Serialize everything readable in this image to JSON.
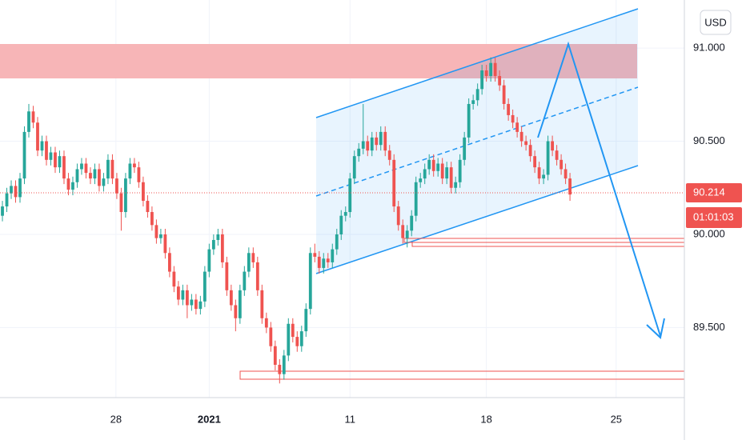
{
  "chart_data": {
    "type": "candlestick",
    "currency": "USD",
    "xlim": [
      -0.55,
      155
    ],
    "ylim": [
      89.124,
      91.258
    ],
    "xticks": [
      {
        "value": 25.8,
        "label": "28"
      },
      {
        "value": 47,
        "label": "2021"
      },
      {
        "value": 79,
        "label": "11"
      },
      {
        "value": 110,
        "label": "18"
      },
      {
        "value": 139.5,
        "label": "25"
      }
    ],
    "yticks": [
      {
        "value": 89.5,
        "label": "89.500"
      },
      {
        "value": 90.0,
        "label": "90.000"
      },
      {
        "value": 90.5,
        "label": "90.500"
      },
      {
        "value": 91.0,
        "label": "91.000"
      }
    ],
    "grid": true,
    "up_color": "#26a69a",
    "down_color": "#ef5350",
    "price_label": "90.214",
    "countdown": "01:01:03",
    "series": [
      {
        "ohlc": [
          [
            90.1,
            90.18,
            90.07,
            90.15
          ],
          [
            90.15,
            90.25,
            90.12,
            90.22
          ],
          [
            90.22,
            90.29,
            90.19,
            90.26
          ],
          [
            90.26,
            90.29,
            90.17,
            90.2
          ],
          [
            90.2,
            90.33,
            90.17,
            90.3
          ],
          [
            90.3,
            90.58,
            90.27,
            90.55
          ],
          [
            90.55,
            90.7,
            90.52,
            90.66
          ],
          [
            90.66,
            90.69,
            90.57,
            90.6
          ],
          [
            90.6,
            90.63,
            90.42,
            90.45
          ],
          [
            90.45,
            90.53,
            90.42,
            90.5
          ],
          [
            90.5,
            90.53,
            90.37,
            90.4
          ],
          [
            90.4,
            90.47,
            90.37,
            90.44
          ],
          [
            90.44,
            90.47,
            90.33,
            90.36
          ],
          [
            90.36,
            90.45,
            90.33,
            90.42
          ],
          [
            90.42,
            90.45,
            90.27,
            90.3
          ],
          [
            90.3,
            90.33,
            90.21,
            90.24
          ],
          [
            90.24,
            90.31,
            90.21,
            90.28
          ],
          [
            90.28,
            90.38,
            90.25,
            90.35
          ],
          [
            90.35,
            90.41,
            90.32,
            90.38
          ],
          [
            90.38,
            90.41,
            90.3,
            90.33
          ],
          [
            90.33,
            90.36,
            90.27,
            90.3
          ],
          [
            90.3,
            90.38,
            90.27,
            90.35
          ],
          [
            90.35,
            90.38,
            90.23,
            90.26
          ],
          [
            90.26,
            90.33,
            90.23,
            90.3
          ],
          [
            90.3,
            90.43,
            90.27,
            90.4
          ],
          [
            90.4,
            90.43,
            90.27,
            90.3
          ],
          [
            90.3,
            90.33,
            90.19,
            90.22
          ],
          [
            90.22,
            90.25,
            90.02,
            90.12
          ],
          [
            90.12,
            90.33,
            90.09,
            90.3
          ],
          [
            90.3,
            90.41,
            90.27,
            90.38
          ],
          [
            90.38,
            90.41,
            90.33,
            90.36
          ],
          [
            90.36,
            90.39,
            90.25,
            90.28
          ],
          [
            90.28,
            90.31,
            90.15,
            90.18
          ],
          [
            90.18,
            90.21,
            90.09,
            90.12
          ],
          [
            90.12,
            90.15,
            90.02,
            90.05
          ],
          [
            90.05,
            90.08,
            89.95,
            89.98
          ],
          [
            89.98,
            90.03,
            89.95,
            90.0
          ],
          [
            90.0,
            90.03,
            89.87,
            89.9
          ],
          [
            89.9,
            89.93,
            89.77,
            89.8
          ],
          [
            89.8,
            89.83,
            89.69,
            89.72
          ],
          [
            89.72,
            89.75,
            89.62,
            89.65
          ],
          [
            89.65,
            89.73,
            89.62,
            89.7
          ],
          [
            89.7,
            89.73,
            89.55,
            89.62
          ],
          [
            89.62,
            89.68,
            89.59,
            89.65
          ],
          [
            89.65,
            89.68,
            89.57,
            89.6
          ],
          [
            89.6,
            89.67,
            89.57,
            89.64
          ],
          [
            89.64,
            89.83,
            89.61,
            89.8
          ],
          [
            89.8,
            89.95,
            89.77,
            89.92
          ],
          [
            89.92,
            90.0,
            89.89,
            89.97
          ],
          [
            89.97,
            90.03,
            89.94,
            90.0
          ],
          [
            90.0,
            90.03,
            89.82,
            89.85
          ],
          [
            89.85,
            89.88,
            89.67,
            89.7
          ],
          [
            89.7,
            89.73,
            89.59,
            89.62
          ],
          [
            89.62,
            89.65,
            89.48,
            89.55
          ],
          [
            89.55,
            89.73,
            89.52,
            89.7
          ],
          [
            89.7,
            89.83,
            89.67,
            89.8
          ],
          [
            89.8,
            89.93,
            89.77,
            89.9
          ],
          [
            89.9,
            89.93,
            89.82,
            89.85
          ],
          [
            89.85,
            89.88,
            89.67,
            89.7
          ],
          [
            89.7,
            89.73,
            89.52,
            89.55
          ],
          [
            89.55,
            89.58,
            89.47,
            89.5
          ],
          [
            89.5,
            89.53,
            89.37,
            89.4
          ],
          [
            89.4,
            89.43,
            89.27,
            89.3
          ],
          [
            89.3,
            89.33,
            89.2,
            89.25
          ],
          [
            89.25,
            89.38,
            89.22,
            89.35
          ],
          [
            89.35,
            89.55,
            89.32,
            89.52
          ],
          [
            89.52,
            89.55,
            89.42,
            89.45
          ],
          [
            89.45,
            89.48,
            89.37,
            89.4
          ],
          [
            89.4,
            89.51,
            89.37,
            89.48
          ],
          [
            89.48,
            89.63,
            89.45,
            89.6
          ],
          [
            89.6,
            89.93,
            89.57,
            89.9
          ],
          [
            89.9,
            89.95,
            89.85,
            89.88
          ],
          [
            89.88,
            89.91,
            89.79,
            89.82
          ],
          [
            89.82,
            89.9,
            89.79,
            89.87
          ],
          [
            89.87,
            89.9,
            89.82,
            89.85
          ],
          [
            89.85,
            89.95,
            89.82,
            89.92
          ],
          [
            89.92,
            90.03,
            89.89,
            90.0
          ],
          [
            90.0,
            90.13,
            89.97,
            90.1
          ],
          [
            90.1,
            90.15,
            90.07,
            90.12
          ],
          [
            90.12,
            90.33,
            90.09,
            90.3
          ],
          [
            90.3,
            90.45,
            90.27,
            90.42
          ],
          [
            90.42,
            90.49,
            90.39,
            90.46
          ],
          [
            90.46,
            90.7,
            90.43,
            90.5
          ],
          [
            90.5,
            90.53,
            90.42,
            90.45
          ],
          [
            90.45,
            90.55,
            90.42,
            90.52
          ],
          [
            90.52,
            90.55,
            90.45,
            90.48
          ],
          [
            90.48,
            90.58,
            90.45,
            90.55
          ],
          [
            90.55,
            90.58,
            90.42,
            90.45
          ],
          [
            90.45,
            90.48,
            90.37,
            90.4
          ],
          [
            90.4,
            90.43,
            90.12,
            90.15
          ],
          [
            90.15,
            90.18,
            90.02,
            90.05
          ],
          [
            90.05,
            90.08,
            89.95,
            89.98
          ],
          [
            89.98,
            90.05,
            89.93,
            90.02
          ],
          [
            90.02,
            90.13,
            89.99,
            90.1
          ],
          [
            90.1,
            90.31,
            90.07,
            90.28
          ],
          [
            90.28,
            90.33,
            90.25,
            90.3
          ],
          [
            90.3,
            90.38,
            90.27,
            90.35
          ],
          [
            90.35,
            90.43,
            90.32,
            90.4
          ],
          [
            90.4,
            90.43,
            90.31,
            90.34
          ],
          [
            90.34,
            90.41,
            90.31,
            90.38
          ],
          [
            90.38,
            90.41,
            90.27,
            90.3
          ],
          [
            90.3,
            90.39,
            90.27,
            90.36
          ],
          [
            90.36,
            90.39,
            90.22,
            90.25
          ],
          [
            90.25,
            90.31,
            90.22,
            90.28
          ],
          [
            90.28,
            90.43,
            90.25,
            90.4
          ],
          [
            90.4,
            90.55,
            90.37,
            90.52
          ],
          [
            90.52,
            90.73,
            90.49,
            90.7
          ],
          [
            90.7,
            90.75,
            90.67,
            90.72
          ],
          [
            90.72,
            90.81,
            90.69,
            90.78
          ],
          [
            90.78,
            90.91,
            90.75,
            90.88
          ],
          [
            90.88,
            90.91,
            90.82,
            90.85
          ],
          [
            90.85,
            90.95,
            90.82,
            90.92
          ],
          [
            90.92,
            90.95,
            90.82,
            90.85
          ],
          [
            90.85,
            90.88,
            90.77,
            90.8
          ],
          [
            90.8,
            90.83,
            90.67,
            90.7
          ],
          [
            90.7,
            90.73,
            90.61,
            90.64
          ],
          [
            90.64,
            90.67,
            90.57,
            90.6
          ],
          [
            90.6,
            90.63,
            90.52,
            90.55
          ],
          [
            90.55,
            90.58,
            90.47,
            90.5
          ],
          [
            90.5,
            90.53,
            90.45,
            90.48
          ],
          [
            90.48,
            90.51,
            90.39,
            90.42
          ],
          [
            90.42,
            90.45,
            90.33,
            90.36
          ],
          [
            90.36,
            90.39,
            90.27,
            90.3
          ],
          [
            90.3,
            90.35,
            90.27,
            90.32
          ],
          [
            90.32,
            90.53,
            90.29,
            90.5
          ],
          [
            90.5,
            90.53,
            90.42,
            90.45
          ],
          [
            90.45,
            90.48,
            90.37,
            90.4
          ],
          [
            90.4,
            90.43,
            90.32,
            90.35
          ],
          [
            90.35,
            90.38,
            90.27,
            90.3
          ],
          [
            90.3,
            90.33,
            90.18,
            90.214
          ]
        ]
      }
    ]
  }
}
